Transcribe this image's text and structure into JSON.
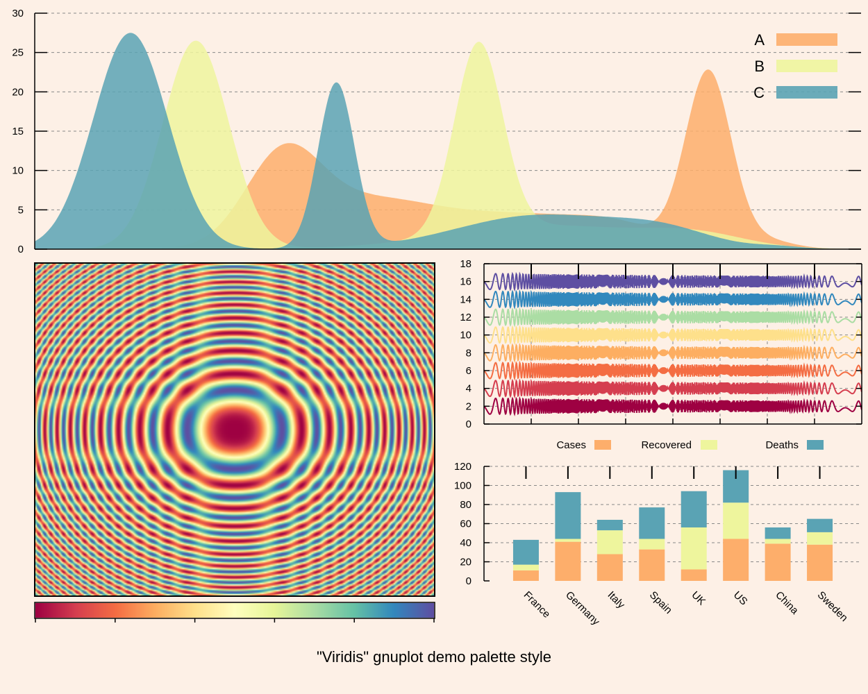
{
  "title": "\"Viridis\" gnuplot demo palette style",
  "colors": {
    "background": "#fdf0e6",
    "A": "#fdae6b",
    "B": "#eef59d",
    "C": "#5aa3b4"
  },
  "chart_data": [
    {
      "type": "area",
      "name": "density-panel",
      "ylim": [
        0,
        30
      ],
      "yticks": [
        "0",
        "5",
        "10",
        "15",
        "20",
        "25",
        "30"
      ],
      "xlim": [
        0,
        100
      ],
      "legend_position": "top-right",
      "series": [
        {
          "name": "A",
          "components": [
            {
              "mu": 30.0,
              "sigma": 4.5,
              "amp": 10.5
            },
            {
              "mu": 40.5,
              "sigma": 8.5,
              "amp": 6.0
            },
            {
              "mu": 60.0,
              "sigma": 9.0,
              "amp": 4.0
            },
            {
              "mu": 71.0,
              "sigma": 5.0,
              "amp": 1.8
            },
            {
              "mu": 81.5,
              "sigma": 2.75,
              "amp": 22.2
            },
            {
              "mu": 88.0,
              "sigma": 3.5,
              "amp": 1.2
            }
          ]
        },
        {
          "name": "B",
          "components": [
            {
              "mu": 19.5,
              "sigma": 4.0,
              "amp": 26.5
            },
            {
              "mu": 53.7,
              "sigma": 2.9,
              "amp": 24.0
            },
            {
              "mu": 62.0,
              "sigma": 12.0,
              "amp": 3.0
            },
            {
              "mu": 80.0,
              "sigma": 6.0,
              "amp": 1.5
            }
          ]
        },
        {
          "name": "C",
          "components": [
            {
              "mu": 11.6,
              "sigma": 4.5,
              "amp": 27.5
            },
            {
              "mu": 36.5,
              "sigma": 2.2,
              "amp": 21.0
            },
            {
              "mu": 61.0,
              "sigma": 10.0,
              "amp": 4.3
            },
            {
              "mu": 76.0,
              "sigma": 6.0,
              "amp": 2.0
            },
            {
              "mu": 90.0,
              "sigma": 3.0,
              "amp": 0.3
            }
          ]
        }
      ]
    },
    {
      "type": "heatmap",
      "name": "ripple-heatmap",
      "xlim": [
        -10,
        10
      ],
      "ylim": [
        -10,
        10
      ],
      "colorbar_ticks": 6,
      "palette": [
        "#9e0142",
        "#d53e4f",
        "#f46d43",
        "#fdae61",
        "#fee08b",
        "#ffffbf",
        "#e6f598",
        "#abdda4",
        "#66c2a5",
        "#3288bd",
        "#5e4fa2"
      ]
    },
    {
      "type": "line",
      "name": "waves-panel",
      "ylim": [
        0,
        18
      ],
      "yticks": [
        "0",
        "2",
        "4",
        "6",
        "8",
        "10",
        "12",
        "14",
        "16",
        "18"
      ],
      "xlim": [
        0,
        200
      ],
      "series": [
        {
          "name": "offset-2",
          "offset": 2,
          "color": "#9e0142"
        },
        {
          "name": "offset-4",
          "offset": 4,
          "color": "#d53e4f"
        },
        {
          "name": "offset-6",
          "offset": 6,
          "color": "#f46d43"
        },
        {
          "name": "offset-8",
          "offset": 8,
          "color": "#fdae61"
        },
        {
          "name": "offset-10",
          "offset": 10,
          "color": "#fee08b"
        },
        {
          "name": "offset-12",
          "offset": 12,
          "color": "#abdda4"
        },
        {
          "name": "offset-14",
          "offset": 14,
          "color": "#3288bd"
        },
        {
          "name": "offset-16",
          "offset": 16,
          "color": "#5e4fa2"
        }
      ]
    },
    {
      "type": "bar",
      "name": "stacked-bars",
      "stacked": true,
      "categories": [
        "France",
        "Germany",
        "Italy",
        "Spain",
        "UK",
        "US",
        "China",
        "Sweden"
      ],
      "ylim": [
        0,
        120
      ],
      "yticks": [
        "0",
        "20",
        "40",
        "60",
        "80",
        "100",
        "120"
      ],
      "series": [
        {
          "name": "Cases",
          "values": [
            11,
            41,
            28,
            33,
            12,
            44,
            39,
            38
          ]
        },
        {
          "name": "Recovered",
          "values": [
            6,
            3,
            25,
            11,
            44,
            38,
            5,
            13
          ]
        },
        {
          "name": "Deaths",
          "values": [
            26,
            49,
            11,
            33,
            38,
            34,
            12,
            14
          ]
        }
      ]
    }
  ]
}
